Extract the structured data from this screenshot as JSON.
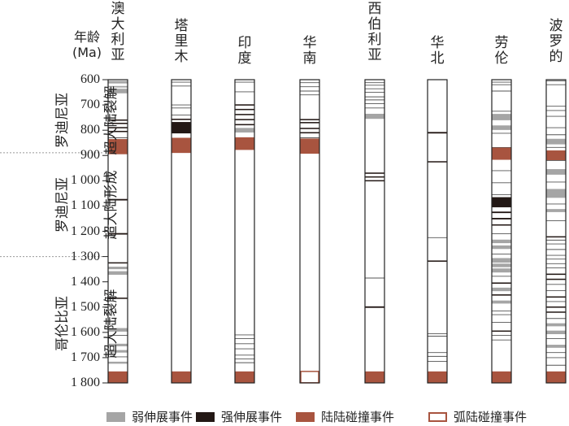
{
  "y_axis": {
    "title_line1": "年龄",
    "title_line2": "(Ma)",
    "ticks": [
      "600",
      "700",
      "800",
      "900",
      "1 000",
      "1 100",
      "1 200",
      "1 300",
      "1 400",
      "1 500",
      "1 600",
      "1 700",
      "1 800"
    ]
  },
  "periods": [
    {
      "text_line1": "罗迪尼亚",
      "text_line2": "超大陆裂解"
    },
    {
      "text_line1": "罗迪尼亚",
      "text_line2": "超大陆形成"
    },
    {
      "text_line1": "哥伦比亚",
      "text_line2": "超大陆裂解"
    }
  ],
  "legend": [
    {
      "label": "弱伸展事件",
      "color": "#a5a5a5",
      "outline": false
    },
    {
      "label": "强伸展事件",
      "color": "#231815",
      "outline": false
    },
    {
      "label": "陆陆碰撞事件",
      "color": "#a8543f",
      "outline": false
    },
    {
      "label": "弧陆碰撞事件",
      "color": "#a8543f",
      "outline": true
    }
  ],
  "colors": {
    "weak": "#a5a5a5",
    "strong": "#231815",
    "collision": "#a8543f",
    "outline": "#333333"
  },
  "chart_data": {
    "type": "timeline",
    "y_unit": "Ma",
    "ylim": [
      600,
      1800
    ],
    "columns": [
      {
        "name": "澳大利亚",
        "events": [
          {
            "age": 610,
            "kind": "weak",
            "span": 10
          },
          {
            "age": 628,
            "kind": "weak",
            "span": 6
          },
          {
            "age": 645,
            "kind": "weak",
            "span": 18
          },
          {
            "age": 760,
            "kind": "strong",
            "span": 5
          },
          {
            "age": 773,
            "kind": "strong",
            "span": 5
          },
          {
            "age": 790,
            "kind": "strong",
            "span": 5
          },
          {
            "age": 805,
            "kind": "strong",
            "span": 5
          },
          {
            "age": 830,
            "kind": "line"
          },
          {
            "age": 865,
            "kind": "collision",
            "span": 60
          },
          {
            "age": 1075,
            "kind": "strong",
            "span": 6
          },
          {
            "age": 1210,
            "kind": "strong",
            "span": 6
          },
          {
            "age": 1325,
            "kind": "strong",
            "span": 4
          },
          {
            "age": 1345,
            "kind": "weak",
            "span": 10
          },
          {
            "age": 1365,
            "kind": "weak",
            "span": 14
          },
          {
            "age": 1465,
            "kind": "strong",
            "span": 5
          },
          {
            "age": 1590,
            "kind": "weak",
            "span": 14
          },
          {
            "age": 1612,
            "kind": "line"
          },
          {
            "age": 1650,
            "kind": "weak",
            "span": 10
          },
          {
            "age": 1675,
            "kind": "weak",
            "span": 10
          },
          {
            "age": 1697,
            "kind": "line"
          },
          {
            "age": 1720,
            "kind": "weak",
            "span": 8
          },
          {
            "age": 1777,
            "kind": "collision",
            "span": 45
          }
        ]
      },
      {
        "name": "塔里木",
        "events": [
          {
            "age": 610,
            "kind": "line"
          },
          {
            "age": 625,
            "kind": "line"
          },
          {
            "age": 700,
            "kind": "line"
          },
          {
            "age": 712,
            "kind": "line"
          },
          {
            "age": 740,
            "kind": "line"
          },
          {
            "age": 757,
            "kind": "strong",
            "span": 5
          },
          {
            "age": 790,
            "kind": "strong",
            "span": 45
          },
          {
            "age": 860,
            "kind": "collision",
            "span": 60
          },
          {
            "age": 1777,
            "kind": "collision",
            "span": 45
          }
        ]
      },
      {
        "name": "印度",
        "events": [
          {
            "age": 610,
            "kind": "line"
          },
          {
            "age": 648,
            "kind": "line"
          },
          {
            "age": 700,
            "kind": "strong",
            "span": 5
          },
          {
            "age": 718,
            "kind": "strong",
            "span": 5
          },
          {
            "age": 738,
            "kind": "strong",
            "span": 5
          },
          {
            "age": 758,
            "kind": "strong",
            "span": 5
          },
          {
            "age": 778,
            "kind": "strong",
            "span": 5
          },
          {
            "age": 800,
            "kind": "weak",
            "span": 18
          },
          {
            "age": 830,
            "kind": "line"
          },
          {
            "age": 853,
            "kind": "collision",
            "span": 50
          },
          {
            "age": 1610,
            "kind": "line"
          },
          {
            "age": 1625,
            "kind": "line"
          },
          {
            "age": 1645,
            "kind": "line"
          },
          {
            "age": 1665,
            "kind": "line"
          },
          {
            "age": 1690,
            "kind": "line"
          },
          {
            "age": 1705,
            "kind": "line"
          },
          {
            "age": 1720,
            "kind": "line"
          },
          {
            "age": 1777,
            "kind": "collision",
            "span": 45
          }
        ]
      },
      {
        "name": "华南",
        "events": [
          {
            "age": 612,
            "kind": "line"
          },
          {
            "age": 628,
            "kind": "line"
          },
          {
            "age": 645,
            "kind": "line"
          },
          {
            "age": 660,
            "kind": "line"
          },
          {
            "age": 758,
            "kind": "strong",
            "span": 5
          },
          {
            "age": 770,
            "kind": "strong",
            "span": 5
          },
          {
            "age": 793,
            "kind": "strong",
            "span": 5
          },
          {
            "age": 810,
            "kind": "strong",
            "span": 5
          },
          {
            "age": 830,
            "kind": "line"
          },
          {
            "age": 863,
            "kind": "collision",
            "span": 60
          },
          {
            "age": 1777,
            "kind": "collision-outline",
            "span": 45
          }
        ]
      },
      {
        "name": "西伯利亚",
        "events": [
          {
            "age": 612,
            "kind": "line"
          },
          {
            "age": 622,
            "kind": "line"
          },
          {
            "age": 636,
            "kind": "line"
          },
          {
            "age": 650,
            "kind": "line"
          },
          {
            "age": 668,
            "kind": "line"
          },
          {
            "age": 680,
            "kind": "line"
          },
          {
            "age": 695,
            "kind": "line"
          },
          {
            "age": 712,
            "kind": "line"
          },
          {
            "age": 745,
            "kind": "weak",
            "span": 20
          },
          {
            "age": 970,
            "kind": "strong",
            "span": 5
          },
          {
            "age": 985,
            "kind": "strong",
            "span": 4
          },
          {
            "age": 1000,
            "kind": "strong",
            "span": 4
          },
          {
            "age": 1385,
            "kind": "line"
          },
          {
            "age": 1500,
            "kind": "strong",
            "span": 6
          },
          {
            "age": 1777,
            "kind": "collision",
            "span": 45
          }
        ]
      },
      {
        "name": "华北",
        "events": [
          {
            "age": 810,
            "kind": "strong",
            "span": 6
          },
          {
            "age": 925,
            "kind": "strong",
            "span": 4
          },
          {
            "age": 1225,
            "kind": "line"
          },
          {
            "age": 1318,
            "kind": "strong",
            "span": 5
          },
          {
            "age": 1605,
            "kind": "line"
          },
          {
            "age": 1615,
            "kind": "line"
          },
          {
            "age": 1680,
            "kind": "line"
          },
          {
            "age": 1695,
            "kind": "line"
          },
          {
            "age": 1715,
            "kind": "line"
          },
          {
            "age": 1777,
            "kind": "collision",
            "span": 45
          }
        ]
      },
      {
        "name": "劳伦",
        "events": [
          {
            "age": 610,
            "kind": "line"
          },
          {
            "age": 620,
            "kind": "line"
          },
          {
            "age": 645,
            "kind": "line"
          },
          {
            "age": 725,
            "kind": "line"
          },
          {
            "age": 748,
            "kind": "weak",
            "span": 25
          },
          {
            "age": 790,
            "kind": "weak",
            "span": 18
          },
          {
            "age": 812,
            "kind": "line"
          },
          {
            "age": 870,
            "kind": "strong",
            "span": 5
          },
          {
            "age": 893,
            "kind": "collision",
            "span": 48
          },
          {
            "age": 960,
            "kind": "line"
          },
          {
            "age": 1008,
            "kind": "line"
          },
          {
            "age": 1055,
            "kind": "line"
          },
          {
            "age": 1085,
            "kind": "strong",
            "span": 40
          },
          {
            "age": 1125,
            "kind": "strong",
            "span": 6
          },
          {
            "age": 1150,
            "kind": "strong",
            "span": 6
          },
          {
            "age": 1175,
            "kind": "strong",
            "span": 5
          },
          {
            "age": 1210,
            "kind": "line"
          },
          {
            "age": 1240,
            "kind": "weak",
            "span": 14
          },
          {
            "age": 1263,
            "kind": "weak",
            "span": 14
          },
          {
            "age": 1290,
            "kind": "line"
          },
          {
            "age": 1315,
            "kind": "weak",
            "span": 18
          },
          {
            "age": 1335,
            "kind": "weak",
            "span": 14
          },
          {
            "age": 1355,
            "kind": "weak",
            "span": 16
          },
          {
            "age": 1378,
            "kind": "line"
          },
          {
            "age": 1405,
            "kind": "strong",
            "span": 5
          },
          {
            "age": 1430,
            "kind": "weak",
            "span": 14
          },
          {
            "age": 1452,
            "kind": "strong",
            "span": 5
          },
          {
            "age": 1480,
            "kind": "weak",
            "span": 12
          },
          {
            "age": 1515,
            "kind": "line"
          },
          {
            "age": 1530,
            "kind": "line"
          },
          {
            "age": 1560,
            "kind": "line"
          },
          {
            "age": 1595,
            "kind": "strong",
            "span": 4
          },
          {
            "age": 1612,
            "kind": "line"
          },
          {
            "age": 1630,
            "kind": "line"
          },
          {
            "age": 1777,
            "kind": "collision",
            "span": 45
          }
        ]
      },
      {
        "name": "波罗的",
        "events": [
          {
            "age": 605,
            "kind": "line"
          },
          {
            "age": 620,
            "kind": "line"
          },
          {
            "age": 705,
            "kind": "line"
          },
          {
            "age": 722,
            "kind": "line"
          },
          {
            "age": 745,
            "kind": "line"
          },
          {
            "age": 790,
            "kind": "line"
          },
          {
            "age": 818,
            "kind": "line"
          },
          {
            "age": 845,
            "kind": "weak",
            "span": 22
          },
          {
            "age": 868,
            "kind": "line"
          },
          {
            "age": 900,
            "kind": "collision",
            "span": 40
          },
          {
            "age": 920,
            "kind": "line"
          },
          {
            "age": 965,
            "kind": "weak",
            "span": 22
          },
          {
            "age": 1005,
            "kind": "line"
          },
          {
            "age": 1050,
            "kind": "weak",
            "span": 35
          },
          {
            "age": 1092,
            "kind": "line"
          },
          {
            "age": 1118,
            "kind": "weak",
            "span": 12
          },
          {
            "age": 1158,
            "kind": "line"
          },
          {
            "age": 1222,
            "kind": "strong",
            "span": 4
          },
          {
            "age": 1235,
            "kind": "line"
          },
          {
            "age": 1250,
            "kind": "line"
          },
          {
            "age": 1272,
            "kind": "line"
          },
          {
            "age": 1295,
            "kind": "line"
          },
          {
            "age": 1310,
            "kind": "line"
          },
          {
            "age": 1328,
            "kind": "line"
          },
          {
            "age": 1345,
            "kind": "line"
          },
          {
            "age": 1370,
            "kind": "strong",
            "span": 5
          },
          {
            "age": 1390,
            "kind": "strong",
            "span": 5
          },
          {
            "age": 1410,
            "kind": "line"
          },
          {
            "age": 1435,
            "kind": "line"
          },
          {
            "age": 1460,
            "kind": "strong",
            "span": 5
          },
          {
            "age": 1478,
            "kind": "line"
          },
          {
            "age": 1500,
            "kind": "strong",
            "span": 5
          },
          {
            "age": 1520,
            "kind": "strong",
            "span": 4
          },
          {
            "age": 1545,
            "kind": "line"
          },
          {
            "age": 1570,
            "kind": "weak",
            "span": 12
          },
          {
            "age": 1600,
            "kind": "weak",
            "span": 14
          },
          {
            "age": 1625,
            "kind": "line"
          },
          {
            "age": 1655,
            "kind": "weak",
            "span": 12
          },
          {
            "age": 1680,
            "kind": "line"
          },
          {
            "age": 1700,
            "kind": "line"
          },
          {
            "age": 1730,
            "kind": "line"
          },
          {
            "age": 1777,
            "kind": "collision",
            "span": 45
          }
        ]
      }
    ]
  }
}
